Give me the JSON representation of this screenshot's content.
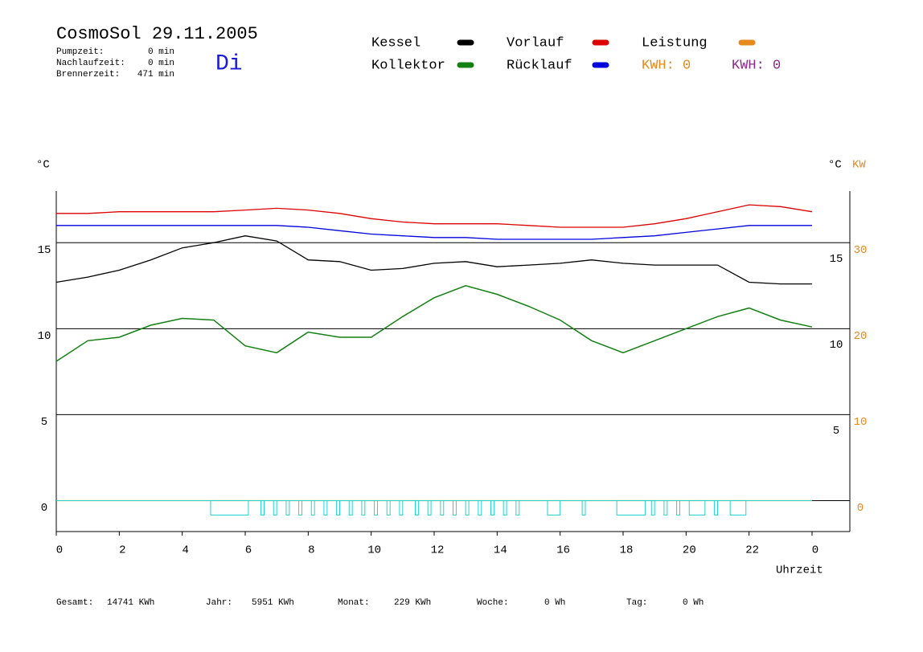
{
  "chart_data": {
    "type": "line",
    "title": "CosmoSol 29.11.2005",
    "day": "Di",
    "stats": [
      {
        "label": "Pumpzeit:",
        "value": "0 min"
      },
      {
        "label": "Nachlaufzeit:",
        "value": "0 min"
      },
      {
        "label": "Brennerzeit:",
        "value": "471 min"
      }
    ],
    "kwh": [
      {
        "label": "KWH: 0",
        "color": "#e8891c"
      },
      {
        "label": "KWH: 0",
        "color": "#8a2a8a"
      }
    ],
    "totals": [
      {
        "label": "Gesamt:",
        "value": "14741 KWh"
      },
      {
        "label": "Jahr:",
        "value": "5951 KWh"
      },
      {
        "label": "Monat:",
        "value": "229 KWh"
      },
      {
        "label": "Woche:",
        "value": "0 Wh"
      },
      {
        "label": "Tag:",
        "value": "0 Wh"
      }
    ],
    "y_label": "°C",
    "y2_label_c": "°C",
    "y2_label": "KW",
    "x_label": "Uhrzeit",
    "x": [
      0,
      1,
      2,
      3,
      4,
      5,
      6,
      7,
      8,
      9,
      10,
      11,
      12,
      13,
      14,
      15,
      16,
      17,
      18,
      19,
      20,
      21,
      22,
      23,
      24
    ],
    "xlim": [
      0,
      24
    ],
    "xticks": [
      0,
      2,
      4,
      6,
      8,
      10,
      12,
      14,
      16,
      18,
      20,
      22,
      {
        "value": 24,
        "label": "0"
      }
    ],
    "ylim": [
      -1.8,
      18
    ],
    "yticks": [
      0,
      5,
      10,
      15
    ],
    "y2lim": [
      -3.6,
      36
    ],
    "y2ticks": [
      0,
      10,
      20,
      30
    ],
    "grid": true,
    "series": [
      {
        "name": "Kessel",
        "color": "#000000",
        "values": [
          12.7,
          13.0,
          13.4,
          14.0,
          14.7,
          15.0,
          15.4,
          15.1,
          14.0,
          13.9,
          13.4,
          13.5,
          13.8,
          13.9,
          13.6,
          13.7,
          13.8,
          14.0,
          13.8,
          13.7,
          13.7,
          13.7,
          12.7,
          12.6,
          12.6
        ]
      },
      {
        "name": "Kollektor",
        "color": "#138013",
        "values": [
          8.1,
          9.3,
          9.5,
          10.2,
          10.6,
          10.5,
          9.0,
          8.6,
          9.8,
          9.5,
          9.5,
          10.7,
          11.8,
          12.5,
          12.0,
          11.3,
          10.5,
          9.3,
          8.6,
          9.3,
          10.0,
          10.7,
          11.2,
          10.5,
          10.1
        ]
      },
      {
        "name": "Vorlauf",
        "color": "#dd0000",
        "values": [
          16.7,
          16.7,
          16.8,
          16.8,
          16.8,
          16.8,
          16.9,
          17.0,
          16.9,
          16.7,
          16.4,
          16.2,
          16.1,
          16.1,
          16.1,
          16.0,
          15.9,
          15.9,
          15.9,
          16.1,
          16.4,
          16.8,
          17.2,
          17.1,
          16.8
        ]
      },
      {
        "name": "Rücklauf",
        "color": "#0000dd",
        "values": [
          16.0,
          16.0,
          16.0,
          16.0,
          16.0,
          16.0,
          16.0,
          16.0,
          15.9,
          15.7,
          15.5,
          15.4,
          15.3,
          15.3,
          15.2,
          15.2,
          15.2,
          15.2,
          15.3,
          15.4,
          15.6,
          15.8,
          16.0,
          16.0,
          16.0
        ]
      },
      {
        "name": "Leistung",
        "color": "#e8891c",
        "axis": "y2",
        "values": [
          0,
          0,
          0,
          0,
          0,
          0,
          0,
          0,
          0,
          0,
          0,
          0,
          0,
          0,
          0,
          0,
          0,
          0,
          0,
          0,
          0,
          0,
          0,
          0,
          0
        ]
      }
    ],
    "pulse_color": "#22d3d3",
    "pulses": [
      [
        4.9,
        6.1
      ],
      [
        6.5,
        6.6
      ],
      [
        6.9,
        7.0
      ],
      [
        7.3,
        7.4
      ],
      [
        7.7,
        7.8
      ],
      [
        8.1,
        8.2
      ],
      [
        8.5,
        8.6
      ],
      [
        8.9,
        9.0
      ],
      [
        9.3,
        9.4
      ],
      [
        9.7,
        9.8
      ],
      [
        10.1,
        10.2
      ],
      [
        10.5,
        10.6
      ],
      [
        10.9,
        11.0
      ],
      [
        11.4,
        11.5
      ],
      [
        11.8,
        11.9
      ],
      [
        12.2,
        12.3
      ],
      [
        12.6,
        12.7
      ],
      [
        13.0,
        13.1
      ],
      [
        13.4,
        13.5
      ],
      [
        13.8,
        13.9
      ],
      [
        14.2,
        14.3
      ],
      [
        14.6,
        14.7
      ],
      [
        15.6,
        16.0
      ],
      [
        16.7,
        16.8
      ],
      [
        17.8,
        18.7
      ],
      [
        18.9,
        19.0
      ],
      [
        19.3,
        19.4
      ],
      [
        19.7,
        19.8
      ],
      [
        20.1,
        20.6
      ],
      [
        20.9,
        21.0
      ],
      [
        21.4,
        21.9
      ]
    ]
  }
}
